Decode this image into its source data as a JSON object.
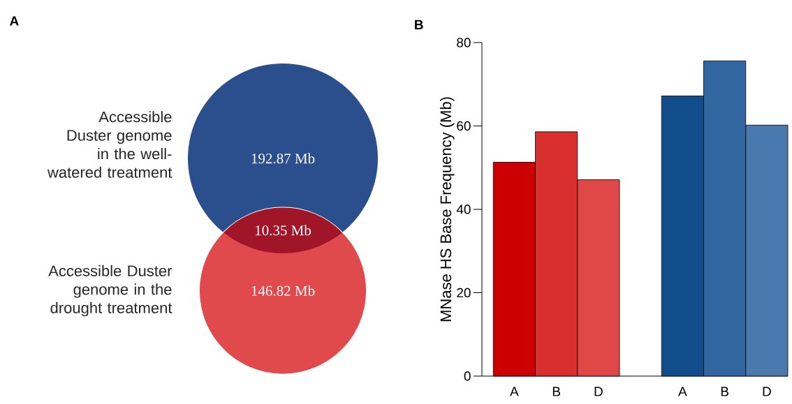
{
  "chart_data": [
    {
      "type": "other",
      "title": "A",
      "categories": [
        "Accessible Duster genome in the well-watered treatment",
        null,
        "Accessible Duster genome in the drought treatment"
      ],
      "values": [
        192.87,
        10.35,
        146.82
      ],
      "value_labels": [
        "192.87 Mb",
        "10.35 Mb",
        "146.82 Mb"
      ],
      "colors": [
        "#2b4e8c",
        "#a01528",
        "#e04a4c"
      ]
    },
    {
      "type": "bar",
      "title": "B",
      "ylabel": "MNase HS Base Frequency (Mb)",
      "categories": [
        "A",
        "B",
        "D",
        null,
        "A",
        "B",
        "D"
      ],
      "values": [
        51.3,
        58.6,
        47.1,
        null,
        67.2,
        75.6,
        60.2
      ],
      "colors": [
        "#cc0000",
        "#d92f2f",
        "#e04848",
        "#ffffff",
        "#114d8a",
        "#3166a0",
        "#4a7aad"
      ],
      "ylim": [
        0,
        80
      ],
      "yticks": [
        0,
        20,
        40,
        60,
        80
      ]
    }
  ]
}
